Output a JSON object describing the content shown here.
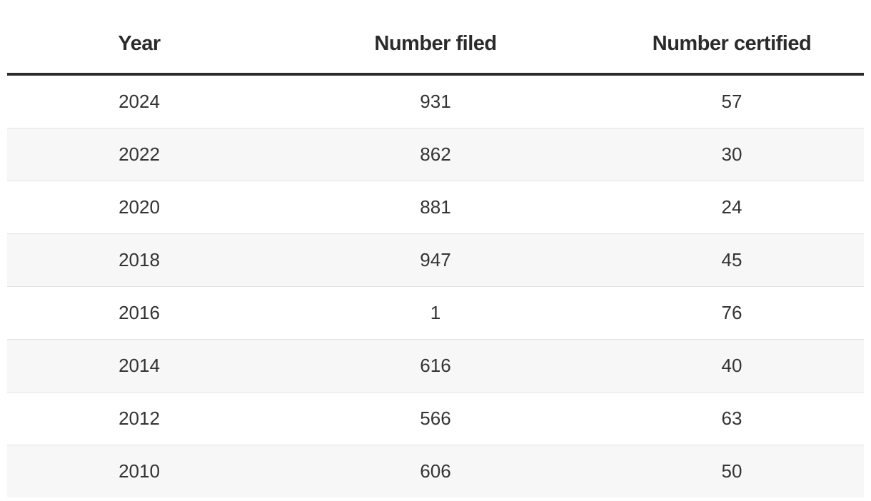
{
  "table": {
    "header": [
      "Year",
      "Number filed",
      "Number certified"
    ],
    "rows": [
      [
        2024,
        931,
        57
      ],
      [
        2022,
        862,
        30
      ],
      [
        2020,
        881,
        24
      ],
      [
        2018,
        947,
        45
      ],
      [
        2016,
        1,
        76
      ],
      [
        2014,
        616,
        40
      ],
      [
        2012,
        566,
        63
      ],
      [
        2010,
        606,
        50
      ]
    ]
  }
}
